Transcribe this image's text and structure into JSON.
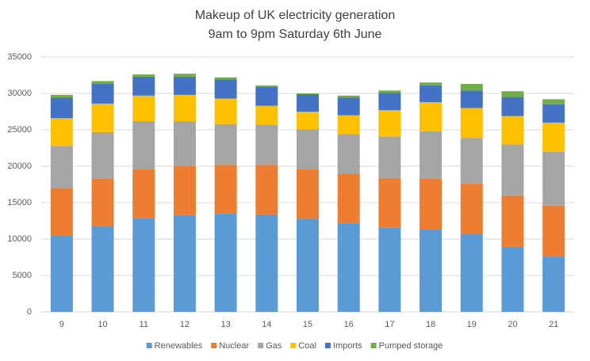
{
  "chart_data": {
    "type": "stacked_bar",
    "title": "Makeup of UK electricity generation",
    "subtitle": "9am to 9pm Saturday 6th June",
    "categories": [
      "9",
      "10",
      "11",
      "12",
      "13",
      "14",
      "15",
      "16",
      "17",
      "18",
      "19",
      "20",
      "21"
    ],
    "series": [
      {
        "name": "Renewables",
        "color": "#5b9bd5",
        "values": [
          10500,
          11800,
          12900,
          13300,
          13500,
          13400,
          12800,
          12200,
          11600,
          11300,
          10700,
          9000,
          7600
        ]
      },
      {
        "name": "Nuclear",
        "color": "#ed7d31",
        "values": [
          6500,
          6500,
          6700,
          6700,
          6700,
          6800,
          6800,
          6800,
          6800,
          7000,
          6900,
          7000,
          7000
        ]
      },
      {
        "name": "Gas",
        "color": "#a5a5a5",
        "values": [
          5800,
          6400,
          6600,
          6200,
          5600,
          5500,
          5500,
          5400,
          5700,
          6500,
          6300,
          7000,
          7400
        ]
      },
      {
        "name": "Coal",
        "color": "#ffc000",
        "values": [
          3800,
          3900,
          3500,
          3600,
          3500,
          2600,
          2400,
          2600,
          3600,
          4000,
          4100,
          3900,
          4000
        ]
      },
      {
        "name": "Imports",
        "color": "#4472c4",
        "values": [
          2800,
          2700,
          2600,
          2500,
          2600,
          2600,
          2400,
          2400,
          2400,
          2300,
          2400,
          2600,
          2500
        ]
      },
      {
        "name": "Pumped storage",
        "color": "#70ad47",
        "values": [
          400,
          400,
          300,
          400,
          300,
          200,
          100,
          300,
          300,
          400,
          900,
          800,
          700
        ]
      }
    ],
    "ylim": [
      0,
      35000
    ],
    "yticks": [
      0,
      5000,
      10000,
      15000,
      20000,
      25000,
      30000,
      35000
    ],
    "grid": true
  }
}
